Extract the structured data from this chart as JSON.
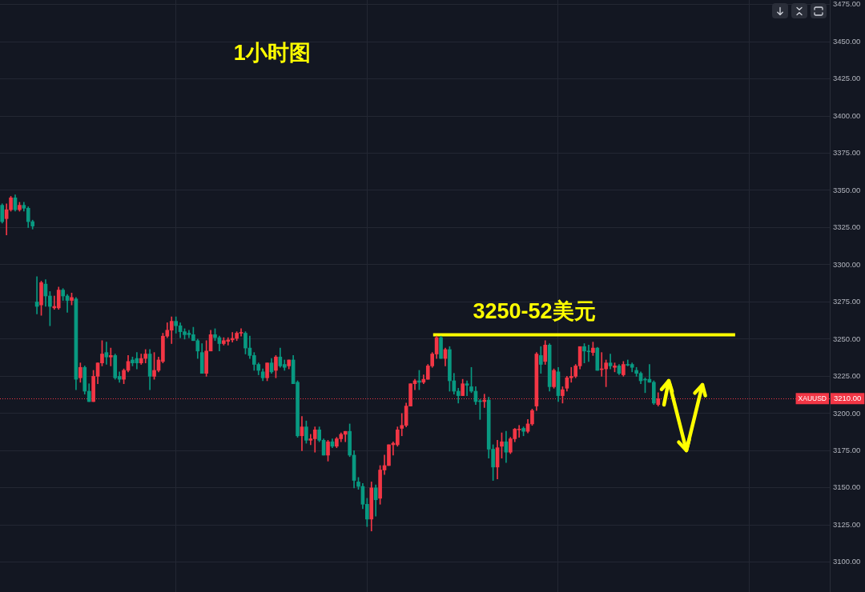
{
  "chart_data": {
    "type": "candlestick",
    "title": "1小时图",
    "categories": [
      null,
      null,
      null,
      null,
      null,
      null,
      null,
      null,
      null,
      null,
      null,
      null,
      null,
      null,
      null,
      null,
      null,
      null,
      null,
      null,
      null,
      null,
      null,
      null,
      null,
      null,
      null,
      null,
      null,
      null,
      null,
      null,
      null,
      null,
      null,
      null,
      null,
      null,
      null,
      null,
      null,
      null,
      null,
      null,
      null,
      null,
      null,
      null,
      null,
      null,
      null,
      null,
      null,
      null,
      null,
      null,
      null,
      null,
      null,
      null,
      null,
      null,
      null,
      null,
      null,
      null,
      null,
      null,
      null,
      null,
      null,
      null,
      null,
      null,
      null,
      null,
      null,
      null,
      null,
      null,
      null,
      null,
      null,
      null,
      null,
      null,
      null,
      null,
      null,
      null,
      null,
      null,
      null,
      null,
      null,
      null,
      null,
      null,
      null,
      null,
      null,
      null,
      null,
      null,
      null,
      null,
      null,
      null,
      null,
      null,
      null,
      null,
      null,
      null,
      null,
      null,
      null,
      null,
      null,
      null,
      null,
      null,
      null,
      null,
      null,
      null,
      null,
      null,
      null,
      null,
      null,
      null,
      null,
      null,
      null,
      null,
      null,
      null,
      null,
      null,
      null,
      null,
      null,
      null,
      null,
      null,
      null,
      null,
      null,
      null,
      null,
      null,
      null,
      null,
      null,
      null,
      null,
      null,
      null,
      null,
      null,
      null,
      null,
      null,
      null,
      null,
      null,
      null,
      null,
      null,
      null,
      null,
      null,
      null,
      null,
      null,
      null,
      null,
      null,
      null,
      null,
      null,
      null,
      null,
      null,
      null,
      null,
      null,
      null,
      null,
      null
    ],
    "ohlc": [
      [
        3340,
        3341,
        3328,
        3329
      ],
      [
        3331,
        3341,
        3320,
        3337
      ],
      [
        3337,
        3346,
        3336,
        3345
      ],
      [
        3345,
        3347,
        3336,
        3337
      ],
      [
        3337,
        3342,
        3336,
        3340
      ],
      [
        3340,
        3342,
        3336,
        3338
      ],
      [
        3338,
        3339,
        3325,
        3329
      ],
      [
        3329,
        3330,
        3324,
        3326
      ],
      [
        3275,
        3292,
        3267,
        3272
      ],
      [
        3273,
        3289,
        3266,
        3288
      ],
      [
        3287,
        3290,
        3272,
        3279
      ],
      [
        3279,
        3282,
        3259,
        3272
      ],
      [
        3271,
        3279,
        3270,
        3272
      ],
      [
        3271,
        3285,
        3270,
        3283
      ],
      [
        3283,
        3284,
        3276,
        3279
      ],
      [
        3279,
        3280,
        3268,
        3276
      ],
      [
        3276,
        3281,
        3273,
        3278
      ],
      [
        3277,
        3278,
        3216,
        3223
      ],
      [
        3224,
        3234,
        3221,
        3231
      ],
      [
        3231,
        3232,
        3213,
        3215
      ],
      [
        3215,
        3220,
        3208,
        3208
      ],
      [
        3208,
        3229,
        3208,
        3225
      ],
      [
        3225,
        3234,
        3220,
        3234
      ],
      [
        3234,
        3249,
        3232,
        3240
      ],
      [
        3241,
        3248,
        3233,
        3238
      ],
      [
        3238,
        3244,
        3232,
        3239
      ],
      [
        3239,
        3240,
        3223,
        3224
      ],
      [
        3225,
        3228,
        3221,
        3223
      ],
      [
        3223,
        3230,
        3220,
        3229
      ],
      [
        3229,
        3239,
        3228,
        3235
      ],
      [
        3236,
        3238,
        3232,
        3234
      ],
      [
        3237,
        3241,
        3230,
        3234
      ],
      [
        3234,
        3240,
        3233,
        3237
      ],
      [
        3237,
        3243,
        3234,
        3240
      ],
      [
        3240,
        3243,
        3216,
        3225
      ],
      [
        3225,
        3241,
        3223,
        3229
      ],
      [
        3229,
        3238,
        3228,
        3236
      ],
      [
        3235,
        3254,
        3234,
        3252
      ],
      [
        3252,
        3261,
        3251,
        3256
      ],
      [
        3256,
        3265,
        3247,
        3262
      ],
      [
        3262,
        3265,
        3254,
        3259
      ],
      [
        3259,
        3261,
        3251,
        3255
      ],
      [
        3255,
        3257,
        3250,
        3253
      ],
      [
        3254,
        3256,
        3251,
        3253
      ],
      [
        3253,
        3258,
        3249,
        3249
      ],
      [
        3249,
        3250,
        3237,
        3242
      ],
      [
        3241,
        3247,
        3227,
        3227
      ],
      [
        3227,
        3249,
        3225,
        3242
      ],
      [
        3242,
        3256,
        3242,
        3253
      ],
      [
        3253,
        3257,
        3249,
        3251
      ],
      [
        3251,
        3252,
        3242,
        3247
      ],
      [
        3247,
        3251,
        3246,
        3249
      ],
      [
        3248.5,
        3251,
        3246,
        3249.5
      ],
      [
        3249.5,
        3254.5,
        3248,
        3250.5
      ],
      [
        3250.5,
        3255,
        3249,
        3254
      ],
      [
        3254,
        3257,
        3252,
        3254.5
      ],
      [
        3254,
        3255,
        3240,
        3244
      ],
      [
        3244,
        3252,
        3237,
        3239
      ],
      [
        3239,
        3241,
        3229,
        3233
      ],
      [
        3233,
        3234,
        3226,
        3229
      ],
      [
        3228,
        3230,
        3222,
        3224
      ],
      [
        3224,
        3234,
        3222,
        3234
      ],
      [
        3234,
        3237,
        3227,
        3228
      ],
      [
        3229,
        3239,
        3224,
        3238
      ],
      [
        3238,
        3244,
        3231,
        3232
      ],
      [
        3233,
        3236,
        3229,
        3231
      ],
      [
        3232,
        3236,
        3230,
        3236
      ],
      [
        3236,
        3239,
        3220,
        3220
      ],
      [
        3221,
        3222,
        3184,
        3185
      ],
      [
        3185,
        3198,
        3175,
        3191
      ],
      [
        3191,
        3195,
        3180,
        3182
      ],
      [
        3182,
        3186,
        3179,
        3183
      ],
      [
        3183,
        3191,
        3174,
        3189
      ],
      [
        3189,
        3191,
        3181,
        3182
      ],
      [
        3182,
        3183,
        3172,
        3172
      ],
      [
        3172,
        3182,
        3168,
        3181
      ],
      [
        3181,
        3183,
        3177,
        3178
      ],
      [
        3178,
        3184,
        3177,
        3183
      ],
      [
        3183,
        3187,
        3181,
        3186
      ],
      [
        3186,
        3188,
        3181,
        3188
      ],
      [
        3188,
        3193,
        3171,
        3172
      ],
      [
        3172,
        3175,
        3150,
        3155
      ],
      [
        3154,
        3157,
        3149,
        3151
      ],
      [
        3151,
        3153,
        3136,
        3139
      ],
      [
        3139,
        3143,
        3124,
        3129
      ],
      [
        3129,
        3154,
        3121,
        3150
      ],
      [
        3150,
        3152,
        3131,
        3142
      ],
      [
        3143,
        3165,
        3139,
        3162
      ],
      [
        3162,
        3172,
        3159,
        3165
      ],
      [
        3165,
        3179,
        3165,
        3179
      ],
      [
        3179,
        3181,
        3172,
        3180
      ],
      [
        3179,
        3191,
        3178,
        3189
      ],
      [
        3190,
        3200,
        3185,
        3192
      ],
      [
        3192,
        3207,
        3191,
        3205
      ],
      [
        3205,
        3220,
        3205,
        3220
      ],
      [
        3220,
        3223,
        3216,
        3222
      ],
      [
        3222,
        3229,
        3216,
        3221
      ],
      [
        3221,
        3226,
        3220,
        3223
      ],
      [
        3223,
        3233,
        3223,
        3232
      ],
      [
        3232,
        3241,
        3231,
        3240
      ],
      [
        3240,
        3252,
        3237,
        3251
      ],
      [
        3251,
        3252,
        3237,
        3237
      ],
      [
        3237,
        3244,
        3232,
        3243
      ],
      [
        3243,
        3245,
        3215,
        3222
      ],
      [
        3222,
        3227,
        3213,
        3215
      ],
      [
        3215,
        3217,
        3207,
        3212
      ],
      [
        3212,
        3223,
        3212,
        3220
      ],
      [
        3220,
        3222,
        3212,
        3219
      ],
      [
        3218,
        3231,
        3214,
        3215
      ],
      [
        3215,
        3218,
        3206,
        3208
      ],
      [
        3208.5,
        3209.5,
        3196,
        3208
      ],
      [
        3208,
        3213,
        3204,
        3209
      ],
      [
        3209,
        3211,
        3170,
        3176
      ],
      [
        3176,
        3179,
        3155,
        3164
      ],
      [
        3164,
        3182,
        3156,
        3177
      ],
      [
        3178,
        3187,
        3170,
        3181
      ],
      [
        3181,
        3188,
        3167,
        3174
      ],
      [
        3174,
        3184,
        3173,
        3183
      ],
      [
        3183,
        3190,
        3181,
        3189.5
      ],
      [
        3189,
        3192,
        3184,
        3189.5
      ],
      [
        3190,
        3191,
        3185,
        3188
      ],
      [
        3188,
        3196,
        3187,
        3193
      ],
      [
        3193,
        3203,
        3192,
        3202
      ],
      [
        3205,
        3241,
        3202,
        3240
      ],
      [
        3239,
        3245,
        3227,
        3233
      ],
      [
        3235,
        3249,
        3233,
        3246
      ],
      [
        3246,
        3247,
        3215,
        3218
      ],
      [
        3218,
        3230,
        3217,
        3229
      ],
      [
        3228,
        3231,
        3208,
        3212
      ],
      [
        3212,
        3218,
        3207,
        3216
      ],
      [
        3217,
        3225,
        3215,
        3224
      ],
      [
        3224,
        3231,
        3221,
        3225
      ],
      [
        3225,
        3233,
        3224,
        3232
      ],
      [
        3232,
        3245,
        3230,
        3245
      ],
      [
        3245,
        3247,
        3234,
        3242
      ],
      [
        3242,
        3246,
        3235,
        3241.5
      ],
      [
        3241,
        3248,
        3239,
        3244
      ],
      [
        3244,
        3244.5,
        3229,
        3229
      ],
      [
        3229.5,
        3241,
        3225,
        3230
      ],
      [
        3230,
        3236,
        3218,
        3234
      ],
      [
        3234,
        3240,
        3230,
        3232
      ],
      [
        3231,
        3234,
        3228,
        3232
      ],
      [
        3232,
        3233,
        3226,
        3227
      ],
      [
        3226,
        3235,
        3225,
        3233
      ],
      [
        3233,
        3236,
        3232,
        3232.5
      ],
      [
        3233,
        3234,
        3228,
        3231
      ],
      [
        3229,
        3231,
        3225,
        3227
      ],
      [
        3227,
        3228,
        3220,
        3222
      ],
      [
        3223,
        3224,
        3214,
        3222.5
      ],
      [
        3223,
        3233,
        3221,
        3221
      ],
      [
        3221,
        3222,
        3206,
        3207
      ],
      [
        3206,
        3214,
        3205,
        3210
      ],
      null,
      null,
      null,
      null,
      null,
      null,
      null,
      null,
      null,
      null,
      null,
      null,
      null,
      null,
      null,
      null,
      null,
      null,
      null,
      null,
      null,
      null,
      null,
      null,
      null,
      null,
      null,
      null,
      null,
      null,
      null,
      null,
      null,
      null,
      null,
      null,
      null,
      null,
      null
    ],
    "colors": [
      "#089981",
      "#f23645",
      "#f23645",
      "#089981",
      "#f23645",
      "#089981",
      "#089981",
      "#089981",
      "#089981",
      "#f23645",
      "#089981",
      "#089981",
      "#f23645",
      "#f23645",
      "#089981",
      "#089981",
      "#f23645",
      "#089981",
      "#f23645",
      "#089981",
      "#089981",
      "#f23645",
      "#f23645",
      "#f23645",
      "#089981",
      "#f23645",
      "#089981",
      "#089981",
      "#f23645",
      "#f23645",
      "#089981",
      "#089981",
      "#f23645",
      "#f23645",
      "#089981",
      "#f23645",
      "#f23645",
      "#f23645",
      "#f23645",
      "#f23645",
      "#089981",
      "#089981",
      "#089981",
      "#089981",
      "#089981",
      "#089981",
      "#089981",
      "#f23645",
      "#f23645",
      "#089981",
      "#089981",
      "#f23645",
      "#f23645",
      "#f23645",
      "#f23645",
      "#f23645",
      "#089981",
      "#089981",
      "#089981",
      "#089981",
      "#089981",
      "#f23645",
      "#089981",
      "#f23645",
      "#089981",
      "#089981",
      "#f23645",
      "#089981",
      "#089981",
      "#f23645",
      "#089981",
      "#f23645",
      "#f23645",
      "#089981",
      "#089981",
      "#f23645",
      "#089981",
      "#f23645",
      "#f23645",
      "#f23645",
      "#089981",
      "#089981",
      "#089981",
      "#089981",
      "#089981",
      "#f23645",
      "#089981",
      "#f23645",
      "#f23645",
      "#f23645",
      "#f23645",
      "#f23645",
      "#f23645",
      "#f23645",
      "#f23645",
      "#f23645",
      "#089981",
      "#f23645",
      "#f23645",
      "#f23645",
      "#f23645",
      "#089981",
      "#f23645",
      "#089981",
      "#089981",
      "#089981",
      "#f23645",
      "#089981",
      "#089981",
      "#089981",
      "#089981",
      "#f23645",
      "#089981",
      "#089981",
      "#f23645",
      "#f23645",
      "#089981",
      "#f23645",
      "#f23645",
      "#f23645",
      "#089981",
      "#f23645",
      "#f23645",
      "#f23645",
      "#089981",
      "#f23645",
      "#089981",
      "#f23645",
      "#089981",
      "#f23645",
      "#f23645",
      "#f23645",
      "#f23645",
      "#f23645",
      "#089981",
      "#089981",
      "#f23645",
      "#089981",
      "#f23645",
      "#f23645",
      "#089981",
      "#f23645",
      "#089981",
      "#f23645",
      "#089981",
      "#089981",
      "#089981",
      "#089981",
      "#089981",
      "#089981",
      "#089981",
      "#f23645",
      null,
      null,
      null,
      null,
      null,
      null,
      null,
      null,
      null,
      null,
      null,
      null,
      null,
      null,
      null,
      null,
      null,
      null,
      null,
      null,
      null,
      null,
      null,
      null,
      null,
      null,
      null,
      null,
      null,
      null,
      null,
      null,
      null,
      null,
      null,
      null,
      null,
      null,
      null
    ],
    "ylim": [
      3080,
      3478
    ],
    "yticks": [
      {
        "value": 3100,
        "label": "3100.00"
      },
      {
        "value": 3125,
        "label": "3125.00"
      },
      {
        "value": 3150,
        "label": "3150.00"
      },
      {
        "value": 3175,
        "label": "3175.00"
      },
      {
        "value": 3200,
        "label": "3200.00"
      },
      {
        "value": 3225,
        "label": "3225.00"
      },
      {
        "value": 3250,
        "label": "3250.00"
      },
      {
        "value": 3275,
        "label": "3275.00"
      },
      {
        "value": 3300,
        "label": "3300.00"
      },
      {
        "value": 3325,
        "label": "3325.00"
      },
      {
        "value": 3350,
        "label": "3350.00"
      },
      {
        "value": 3375,
        "label": "3375.00"
      },
      {
        "value": 3400,
        "label": "3400.00"
      },
      {
        "value": 3425,
        "label": "3425.00"
      },
      {
        "value": 3450,
        "label": "3450.00"
      },
      {
        "value": 3475,
        "label": "3475.00"
      }
    ],
    "grid": true,
    "tick_labels": "y",
    "ref_lines": [
      {
        "axis": "y",
        "value": 3253,
        "label": "3250-52美元",
        "color": "#ffff00"
      },
      {
        "axis": "y",
        "value": 3210,
        "label": "XAUUSD",
        "color": "#f23645",
        "line_style": "dotted"
      }
    ],
    "annotations": [
      {
        "text": "3210.00",
        "y": 3210
      }
    ]
  }
}
